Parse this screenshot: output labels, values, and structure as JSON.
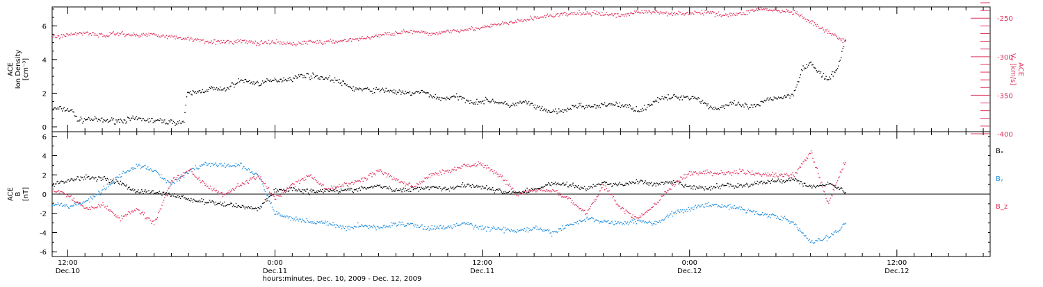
{
  "colors": {
    "frame": "#000000",
    "density": "#000000",
    "vx": "#e0325c",
    "bx": "#000000",
    "by": "#1f8ee0",
    "bz": "#e0325c"
  },
  "time_axis": {
    "title": "hours:minutes, Dec. 10, 2009 - Dec. 12, 2009",
    "ticks": [
      {
        "t": 12,
        "time": "12:00",
        "date": "Dec.10"
      },
      {
        "t": 24,
        "time": "0:00",
        "date": "Dec.11"
      },
      {
        "t": 36,
        "time": "12:00",
        "date": "Dec.11"
      },
      {
        "t": 48,
        "time": "0:00",
        "date": "Dec.12"
      },
      {
        "t": 60,
        "time": "12:00",
        "date": "Dec.12"
      }
    ]
  },
  "chart_data": [
    {
      "type": "scatter",
      "ylabel_lines": [
        "ACE",
        "Ion Density",
        "[cm⁻³]"
      ],
      "y2label_lines": [
        "ACE",
        "Vₓ [km/s]"
      ],
      "xlim_hours": [
        11.1,
        65.4
      ],
      "ylim": [
        0,
        7
      ],
      "y_ticks": [
        0,
        2,
        4,
        6
      ],
      "y2lim": [
        -400,
        -230
      ],
      "y2_ticks": [
        -400,
        -350,
        -300,
        -250
      ],
      "series": [
        {
          "key": "density",
          "x": [
            11.1,
            11.6,
            12.2,
            12.6,
            13.2,
            14.0,
            15.0,
            16.0,
            17.0,
            18.0,
            18.7,
            18.9,
            19.5,
            20.3,
            21.0,
            22.0,
            23.0,
            24.0,
            25.0,
            25.6,
            26.5,
            27.5,
            28.5,
            29.5,
            30.5,
            31.5,
            32.5,
            33.5,
            34.5,
            35.5,
            36.5,
            37.5,
            38.5,
            39.5,
            40.5,
            41.0,
            41.5,
            42.5,
            43.5,
            44.5,
            45.2,
            46.0,
            47.0,
            48.0,
            48.5,
            49.0,
            49.5,
            50.5,
            51.5,
            52.0,
            52.5,
            53.5,
            54.0,
            54.5,
            55.0,
            55.5,
            56.0,
            56.5,
            57.0
          ],
          "y": [
            1.1,
            1.1,
            1.0,
            0.4,
            0.5,
            0.4,
            0.4,
            0.5,
            0.4,
            0.3,
            0.3,
            2.0,
            2.1,
            2.3,
            2.2,
            2.8,
            2.6,
            2.8,
            2.9,
            3.1,
            3.0,
            2.8,
            2.3,
            2.2,
            2.2,
            2.0,
            2.1,
            1.7,
            1.8,
            1.5,
            1.6,
            1.3,
            1.5,
            1.0,
            0.9,
            1.1,
            1.3,
            1.2,
            1.4,
            1.2,
            1.0,
            1.6,
            1.8,
            1.8,
            1.7,
            1.3,
            1.1,
            1.4,
            1.2,
            1.3,
            1.7,
            1.8,
            2.0,
            3.5,
            3.8,
            3.2,
            2.8,
            3.4,
            5.2
          ]
        },
        {
          "key": "vx",
          "axis": "right",
          "x": [
            11.1,
            12.0,
            13.0,
            14.0,
            15.0,
            16.0,
            17.0,
            18.0,
            19.0,
            20.0,
            21.0,
            22.0,
            23.0,
            24.0,
            25.0,
            26.0,
            27.0,
            28.0,
            29.0,
            30.0,
            31.0,
            32.0,
            33.0,
            34.0,
            35.0,
            36.0,
            37.0,
            38.0,
            39.0,
            40.0,
            41.0,
            42.0,
            43.0,
            44.0,
            45.0,
            46.0,
            47.0,
            48.0,
            49.0,
            50.0,
            51.0,
            52.0,
            53.0,
            54.0,
            55.0,
            56.0,
            57.0
          ],
          "y": [
            -274,
            -271,
            -268,
            -272,
            -269,
            -272,
            -270,
            -274,
            -276,
            -279,
            -281,
            -279,
            -282,
            -281,
            -283,
            -280,
            -281,
            -278,
            -276,
            -272,
            -268,
            -267,
            -270,
            -266,
            -264,
            -262,
            -257,
            -254,
            -249,
            -246,
            -244,
            -243,
            -244,
            -246,
            -241,
            -242,
            -243,
            -243,
            -242,
            -245,
            -244,
            -237,
            -240,
            -242,
            -255,
            -268,
            -280
          ]
        }
      ]
    },
    {
      "type": "scatter",
      "ylabel_lines": [
        "ACE",
        "B",
        "[nT]"
      ],
      "xlim_hours": [
        11.1,
        65.4
      ],
      "ylim": [
        -6.2,
        6.2
      ],
      "y_ticks": [
        -6,
        -4,
        -2,
        0,
        2,
        4,
        6
      ],
      "legend_position": "right",
      "series": [
        {
          "key": "bx",
          "name": "Bₓ",
          "x": [
            11.1,
            12.0,
            13.0,
            14.0,
            15.0,
            16.0,
            17.0,
            18.0,
            19.0,
            20.0,
            21.0,
            22.0,
            23.0,
            24.0,
            25.0,
            26.0,
            27.0,
            28.0,
            29.0,
            30.0,
            31.0,
            32.0,
            33.0,
            34.0,
            35.0,
            36.0,
            37.0,
            38.0,
            39.0,
            40.0,
            41.0,
            42.0,
            43.0,
            44.0,
            45.0,
            46.0,
            47.0,
            48.0,
            49.0,
            50.0,
            51.0,
            52.0,
            53.0,
            54.0,
            55.0,
            56.0,
            57.0
          ],
          "y": [
            1.0,
            1.5,
            1.8,
            1.7,
            1.2,
            0.3,
            0.2,
            0.0,
            -0.5,
            -0.8,
            -1.0,
            -1.2,
            -1.5,
            0.4,
            0.6,
            0.3,
            0.5,
            0.4,
            0.6,
            0.9,
            0.4,
            0.6,
            0.8,
            0.6,
            1.0,
            0.8,
            0.3,
            0.2,
            0.5,
            1.2,
            1.0,
            0.6,
            1.2,
            1.0,
            1.4,
            1.0,
            1.3,
            0.8,
            0.6,
            1.0,
            0.9,
            1.2,
            1.4,
            1.6,
            0.8,
            1.2,
            0.3
          ]
        },
        {
          "key": "by",
          "name": "Bᵧ",
          "x": [
            11.1,
            12.0,
            13.0,
            14.0,
            15.0,
            16.0,
            17.0,
            18.0,
            19.0,
            20.0,
            21.0,
            22.0,
            23.0,
            24.0,
            25.0,
            26.0,
            27.0,
            28.0,
            29.0,
            30.0,
            31.0,
            32.0,
            33.0,
            34.0,
            35.0,
            36.0,
            37.0,
            38.0,
            39.0,
            40.0,
            41.0,
            42.0,
            43.0,
            44.0,
            45.0,
            46.0,
            47.0,
            48.0,
            49.0,
            50.0,
            51.0,
            52.0,
            53.0,
            54.0,
            55.0,
            56.0,
            57.0
          ],
          "y": [
            -1.0,
            -1.2,
            -0.8,
            0.5,
            2.0,
            3.0,
            2.5,
            1.0,
            2.5,
            3.2,
            3.0,
            3.0,
            2.0,
            -2.0,
            -2.5,
            -2.8,
            -3.0,
            -3.5,
            -3.2,
            -3.5,
            -3.0,
            -3.2,
            -3.5,
            -3.4,
            -3.0,
            -3.5,
            -3.6,
            -3.8,
            -3.5,
            -4.0,
            -3.2,
            -2.5,
            -2.8,
            -3.0,
            -2.7,
            -3.0,
            -2.0,
            -1.5,
            -1.0,
            -1.2,
            -1.5,
            -2.0,
            -2.2,
            -3.0,
            -5.0,
            -4.5,
            -3.0
          ]
        },
        {
          "key": "bz",
          "name": "B_z",
          "x": [
            11.1,
            12.0,
            13.0,
            14.0,
            15.0,
            16.0,
            17.0,
            18.0,
            19.0,
            20.0,
            21.0,
            22.0,
            23.0,
            24.0,
            25.0,
            26.0,
            27.0,
            28.0,
            29.0,
            30.0,
            31.0,
            32.0,
            33.0,
            34.0,
            35.0,
            36.0,
            37.0,
            38.0,
            39.0,
            40.0,
            41.0,
            42.0,
            43.0,
            44.0,
            45.0,
            46.0,
            47.0,
            48.0,
            49.0,
            50.0,
            51.0,
            52.0,
            53.0,
            54.0,
            55.0,
            56.0,
            57.0
          ],
          "y": [
            0.5,
            0.0,
            -1.5,
            -1.0,
            -2.5,
            -1.5,
            -3.0,
            1.5,
            2.5,
            1.0,
            0.0,
            1.0,
            2.0,
            -0.5,
            1.0,
            2.0,
            0.5,
            1.0,
            1.5,
            2.5,
            1.5,
            0.8,
            2.0,
            2.5,
            3.0,
            3.2,
            2.0,
            0.0,
            0.5,
            0.5,
            -0.5,
            -2.0,
            1.0,
            -1.5,
            -2.5,
            -1.0,
            1.0,
            2.2,
            2.3,
            2.2,
            2.4,
            2.1,
            2.0,
            2.0,
            4.5,
            -1.0,
            3.5
          ]
        }
      ]
    }
  ]
}
